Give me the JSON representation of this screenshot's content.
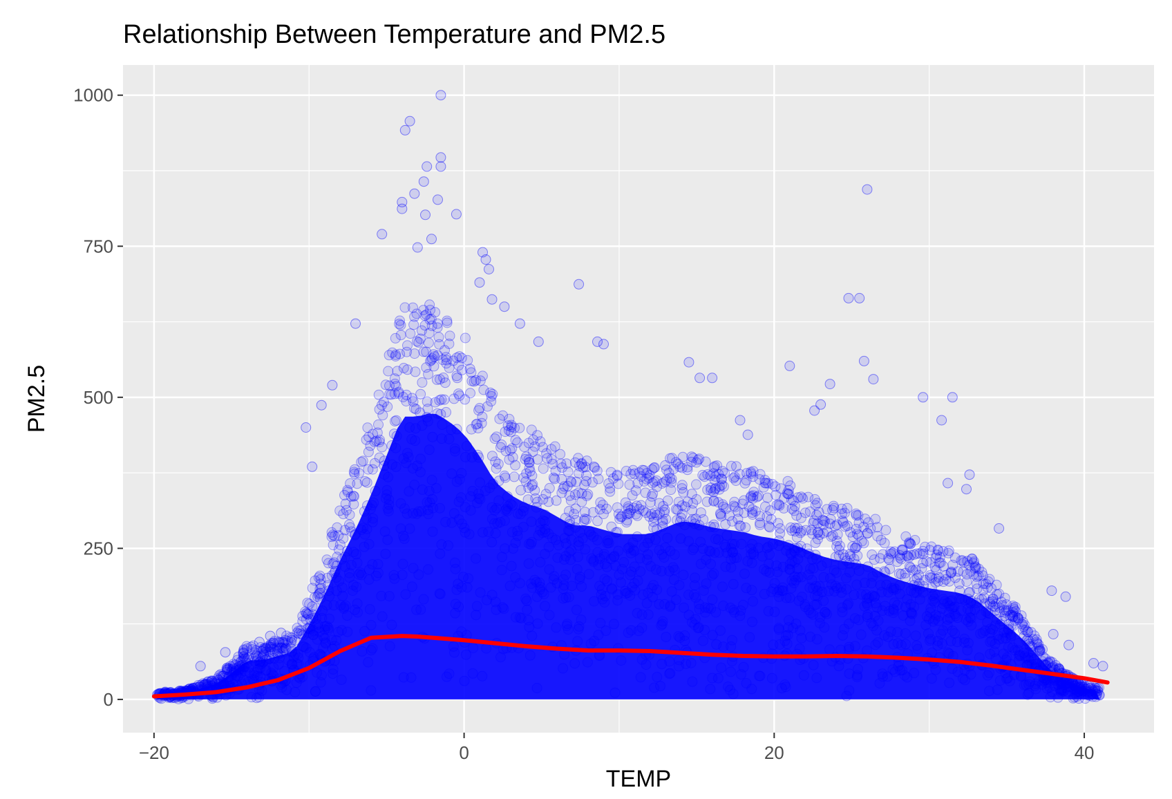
{
  "chart_data": {
    "type": "scatter",
    "title": "Relationship Between Temperature and PM2.5",
    "xlabel": "TEMP",
    "ylabel": "PM2.5",
    "xlim": [
      -22,
      44.5
    ],
    "ylim": [
      -55,
      1050
    ],
    "x_ticks": [
      {
        "value": -20,
        "label": "−20"
      },
      {
        "value": 0,
        "label": "0"
      },
      {
        "value": 20,
        "label": "20"
      },
      {
        "value": 40,
        "label": "40"
      }
    ],
    "y_ticks": [
      {
        "value": 0,
        "label": "0"
      },
      {
        "value": 250,
        "label": "250"
      },
      {
        "value": 500,
        "label": "500"
      },
      {
        "value": 750,
        "label": "750"
      },
      {
        "value": 1000,
        "label": "1000"
      }
    ],
    "grid": true,
    "legend": "none",
    "colors": {
      "points": "#0000ff",
      "smooth_line": "#ff0000",
      "panel_background": "#ebebeb",
      "grid": "#ffffff"
    },
    "series": [
      {
        "kind": "points",
        "envelope_upper": [
          [
            -19.8,
            12
          ],
          [
            -18,
            15
          ],
          [
            -16,
            35
          ],
          [
            -15,
            60
          ],
          [
            -14,
            90
          ],
          [
            -13,
            90
          ],
          [
            -12,
            100
          ],
          [
            -11,
            110
          ],
          [
            -10,
            170
          ],
          [
            -9,
            240
          ],
          [
            -8,
            320
          ],
          [
            -7,
            390
          ],
          [
            -6,
            470
          ],
          [
            -5,
            560
          ],
          [
            -4,
            650
          ],
          [
            -3,
            650
          ],
          [
            -2,
            660
          ],
          [
            -1,
            640
          ],
          [
            0,
            610
          ],
          [
            1,
            560
          ],
          [
            2,
            500
          ],
          [
            3,
            470
          ],
          [
            4,
            450
          ],
          [
            5,
            440
          ],
          [
            6,
            420
          ],
          [
            7,
            400
          ],
          [
            8,
            400
          ],
          [
            9,
            390
          ],
          [
            10,
            380
          ],
          [
            11,
            380
          ],
          [
            12,
            380
          ],
          [
            13,
            395
          ],
          [
            14,
            410
          ],
          [
            15,
            405
          ],
          [
            16,
            395
          ],
          [
            17,
            390
          ],
          [
            18,
            385
          ],
          [
            19,
            375
          ],
          [
            20,
            370
          ],
          [
            21,
            360
          ],
          [
            22,
            345
          ],
          [
            23,
            330
          ],
          [
            24,
            320
          ],
          [
            25,
            315
          ],
          [
            26,
            310
          ],
          [
            27,
            290
          ],
          [
            28,
            275
          ],
          [
            29,
            265
          ],
          [
            30,
            255
          ],
          [
            31,
            250
          ],
          [
            32,
            245
          ],
          [
            33,
            230
          ],
          [
            34,
            200
          ],
          [
            35,
            170
          ],
          [
            36,
            140
          ],
          [
            37,
            100
          ],
          [
            38,
            60
          ],
          [
            39,
            40
          ],
          [
            40,
            25
          ],
          [
            41,
            20
          ]
        ],
        "outliers": [
          [
            -1.5,
            1000
          ],
          [
            -3.5,
            957
          ],
          [
            -3.8,
            942
          ],
          [
            -1.5,
            897
          ],
          [
            -1.5,
            882
          ],
          [
            -2.4,
            882
          ],
          [
            -2.6,
            857
          ],
          [
            26.0,
            844
          ],
          [
            -1.7,
            827
          ],
          [
            -3.2,
            837
          ],
          [
            -4.0,
            823
          ],
          [
            -4.0,
            812
          ],
          [
            -2.5,
            802
          ],
          [
            -0.5,
            803
          ],
          [
            -5.3,
            770
          ],
          [
            -2.1,
            762
          ],
          [
            -3.0,
            748
          ],
          [
            1.2,
            740
          ],
          [
            1.4,
            728
          ],
          [
            1.6,
            712
          ],
          [
            7.4,
            687
          ],
          [
            1.0,
            690
          ],
          [
            25.5,
            664
          ],
          [
            24.8,
            664
          ],
          [
            -8.5,
            520
          ],
          [
            -9.2,
            487
          ],
          [
            -10.2,
            450
          ],
          [
            -9.8,
            385
          ],
          [
            -7.0,
            622
          ],
          [
            1.8,
            662
          ],
          [
            2.6,
            650
          ],
          [
            3.6,
            622
          ],
          [
            4.8,
            592
          ],
          [
            8.6,
            592
          ],
          [
            9.0,
            588
          ],
          [
            14.5,
            558
          ],
          [
            15.2,
            532
          ],
          [
            16.0,
            532
          ],
          [
            21.0,
            552
          ],
          [
            23.6,
            522
          ],
          [
            29.6,
            500
          ],
          [
            31.5,
            500
          ],
          [
            30.8,
            462
          ],
          [
            25.8,
            560
          ],
          [
            26.4,
            530
          ],
          [
            22.6,
            478
          ],
          [
            23.0,
            488
          ],
          [
            17.8,
            462
          ],
          [
            18.3,
            438
          ],
          [
            34.5,
            283
          ],
          [
            37.9,
            180
          ],
          [
            38.8,
            170
          ],
          [
            32.6,
            372
          ],
          [
            31.2,
            358
          ],
          [
            32.4,
            348
          ],
          [
            38.0,
            108
          ],
          [
            39.0,
            90
          ],
          [
            40.6,
            60
          ],
          [
            41.2,
            55
          ],
          [
            -17,
            55
          ],
          [
            -15.4,
            78
          ],
          [
            -14,
            60
          ],
          [
            -12.5,
            105
          ],
          [
            -11.8,
            110
          ],
          [
            -13.2,
            95
          ]
        ]
      },
      {
        "kind": "smooth",
        "name": "",
        "x": [
          -20,
          -18,
          -16,
          -14,
          -12,
          -10,
          -8,
          -6,
          -4,
          -3,
          -2,
          -1,
          0,
          2,
          4,
          6,
          8,
          10,
          12,
          14,
          16,
          18,
          20,
          22,
          24,
          26,
          28,
          30,
          32,
          34,
          36,
          38,
          40,
          41.5
        ],
        "y": [
          5,
          8,
          12,
          20,
          32,
          52,
          80,
          102,
          105,
          104,
          102,
          100,
          98,
          93,
          88,
          84,
          81,
          81,
          80,
          77,
          74,
          72,
          71,
          71,
          72,
          71,
          69,
          66,
          62,
          56,
          49,
          42,
          35,
          28
        ]
      }
    ]
  }
}
